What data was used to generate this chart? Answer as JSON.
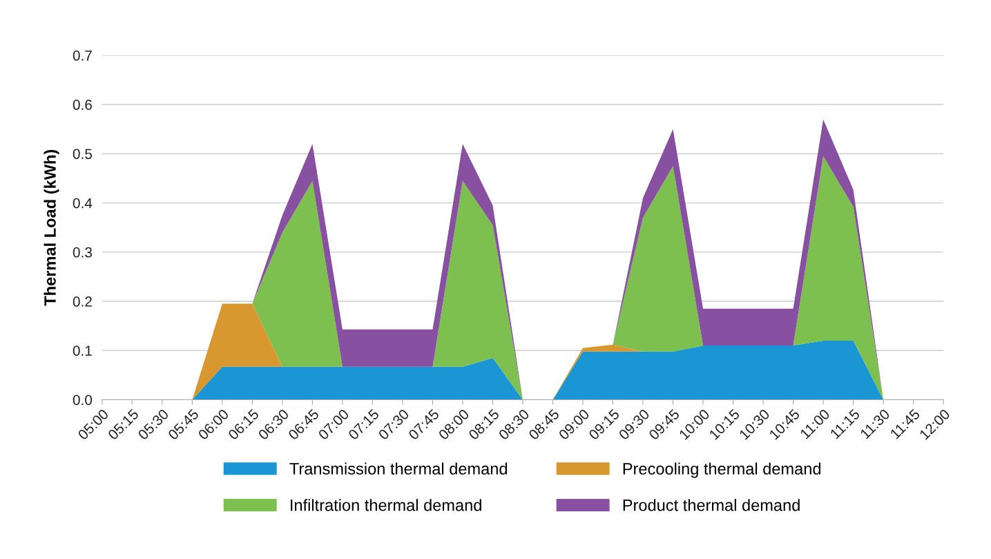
{
  "chart_data": {
    "type": "area",
    "stacked": true,
    "ylabel": "Thermal Load (kWh)",
    "categories": [
      "05:00",
      "05:15",
      "05:30",
      "05:45",
      "06:00",
      "06:15",
      "06:30",
      "06:45",
      "07:00",
      "07:15",
      "07:30",
      "07:45",
      "08:00",
      "08:15",
      "08:30",
      "08:45",
      "09:00",
      "09:15",
      "09:30",
      "09:45",
      "10:00",
      "10:15",
      "10:30",
      "10:45",
      "11:00",
      "11:15",
      "11:30",
      "11:45",
      "12:00"
    ],
    "series": [
      {
        "name": "Transmission thermal demand",
        "color": "#1a96d4",
        "values": [
          0,
          0,
          0,
          0,
          0.067,
          0.067,
          0.067,
          0.067,
          0.067,
          0.067,
          0.067,
          0.067,
          0.067,
          0.085,
          0,
          0,
          0.098,
          0.098,
          0.098,
          0.098,
          0.11,
          0.11,
          0.11,
          0.11,
          0.12,
          0.12,
          0,
          0,
          0
        ]
      },
      {
        "name": "Precooling thermal demand",
        "color": "#d8972f",
        "values": [
          0,
          0,
          0,
          0,
          0.128,
          0.128,
          0,
          0,
          0,
          0,
          0,
          0,
          0,
          0,
          0,
          0,
          0.007,
          0.014,
          0,
          0,
          0,
          0,
          0,
          0,
          0,
          0,
          0,
          0,
          0
        ]
      },
      {
        "name": "Infiltration thermal demand",
        "color": "#7dc04f",
        "values": [
          0,
          0,
          0,
          0,
          0,
          0,
          0.273,
          0.378,
          0,
          0,
          0,
          0,
          0.378,
          0.27,
          0,
          0,
          0,
          0,
          0.272,
          0.377,
          0,
          0,
          0,
          0,
          0.375,
          0.272,
          0,
          0,
          0
        ]
      },
      {
        "name": "Product thermal demand",
        "color": "#8750a0",
        "values": [
          0,
          0,
          0,
          0,
          0,
          0,
          0.035,
          0.075,
          0.076,
          0.076,
          0.076,
          0.076,
          0.075,
          0.04,
          0,
          0,
          0,
          0,
          0.04,
          0.075,
          0.075,
          0.075,
          0.075,
          0.075,
          0.075,
          0.035,
          0,
          0,
          0
        ]
      }
    ],
    "ylim": [
      0,
      0.7
    ],
    "yticks": [
      {
        "value": 0,
        "label": "0.0"
      },
      0.1,
      0.2,
      0.3,
      0.4,
      0.5,
      0.6,
      0.7
    ],
    "grid": "y",
    "legend": "bottom"
  }
}
